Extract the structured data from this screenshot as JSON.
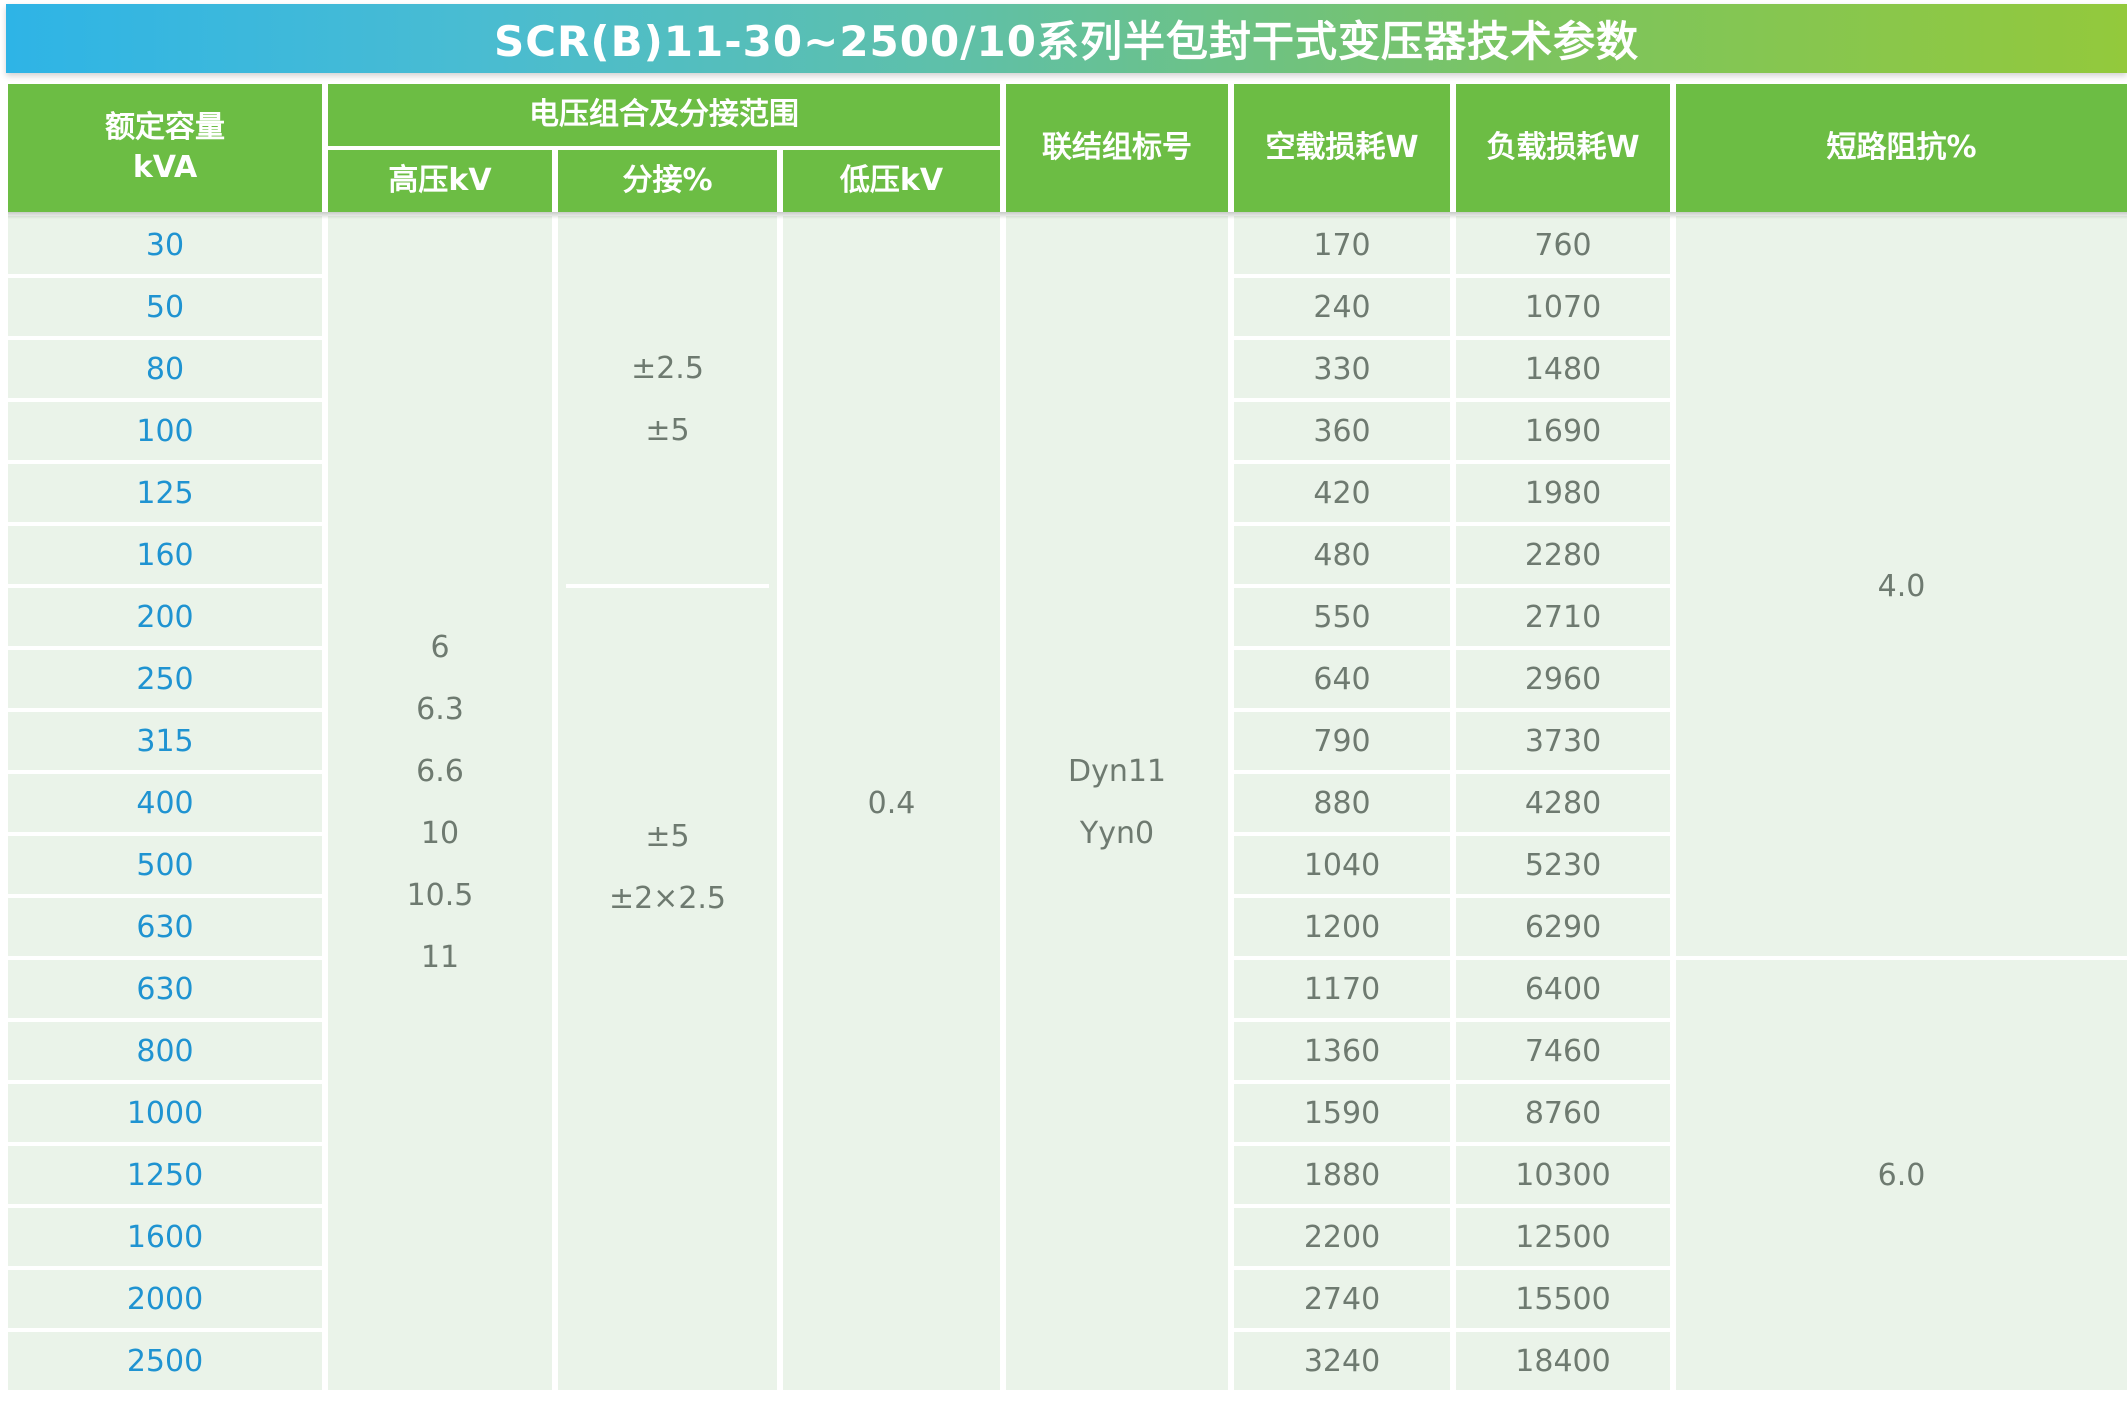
{
  "title": "SCR(B)11-30~2500/10系列半包封干式变压器技术参数",
  "table": {
    "headers": {
      "capacity_l1": "额定容量",
      "capacity_l2": "kVA",
      "voltage_group": "电压组合及分接范围",
      "hv": "高压kV",
      "tap": "分接%",
      "lv": "低压kV",
      "vector": "联结组标号",
      "no_load_loss": "空载损耗W",
      "load_loss": "负载损耗W",
      "impedance": "短路阻抗%"
    },
    "hv_values": [
      "6",
      "6.3",
      "6.6",
      "10",
      "10.5",
      "11"
    ],
    "tap_top": [
      "±2.5",
      "±5"
    ],
    "tap_bottom": [
      "±5",
      "±2×2.5"
    ],
    "lv_value": "0.4",
    "vector_values": [
      "Dyn11",
      "Yyn0"
    ],
    "impedance_top": "4.0",
    "impedance_bottom": "6.0",
    "rows": [
      {
        "capacity": "30",
        "no_load_loss_w": "170",
        "load_loss_w": "760"
      },
      {
        "capacity": "50",
        "no_load_loss_w": "240",
        "load_loss_w": "1070"
      },
      {
        "capacity": "80",
        "no_load_loss_w": "330",
        "load_loss_w": "1480"
      },
      {
        "capacity": "100",
        "no_load_loss_w": "360",
        "load_loss_w": "1690"
      },
      {
        "capacity": "125",
        "no_load_loss_w": "420",
        "load_loss_w": "1980"
      },
      {
        "capacity": "160",
        "no_load_loss_w": "480",
        "load_loss_w": "2280"
      },
      {
        "capacity": "200",
        "no_load_loss_w": "550",
        "load_loss_w": "2710"
      },
      {
        "capacity": "250",
        "no_load_loss_w": "640",
        "load_loss_w": "2960"
      },
      {
        "capacity": "315",
        "no_load_loss_w": "790",
        "load_loss_w": "3730"
      },
      {
        "capacity": "400",
        "no_load_loss_w": "880",
        "load_loss_w": "4280"
      },
      {
        "capacity": "500",
        "no_load_loss_w": "1040",
        "load_loss_w": "5230"
      },
      {
        "capacity": "630",
        "no_load_loss_w": "1200",
        "load_loss_w": "6290"
      },
      {
        "capacity": "630",
        "no_load_loss_w": "1170",
        "load_loss_w": "6400"
      },
      {
        "capacity": "800",
        "no_load_loss_w": "1360",
        "load_loss_w": "7460"
      },
      {
        "capacity": "1000",
        "no_load_loss_w": "1590",
        "load_loss_w": "8760"
      },
      {
        "capacity": "1250",
        "no_load_loss_w": "1880",
        "load_loss_w": "10300"
      },
      {
        "capacity": "1600",
        "no_load_loss_w": "2200",
        "load_loss_w": "12500"
      },
      {
        "capacity": "2000",
        "no_load_loss_w": "2740",
        "load_loss_w": "15500"
      },
      {
        "capacity": "2500",
        "no_load_loss_w": "3240",
        "load_loss_w": "18400"
      }
    ]
  },
  "colors": {
    "title_gradient_start": "#2eb4e6",
    "title_gradient_end": "#93c93c",
    "header_green": "#6cbd44",
    "cell_background": "#eaf3e9",
    "capacity_text_blue": "#1f93d1",
    "value_text_gray": "#6e7a70",
    "grid_line_white": "#ffffff"
  }
}
